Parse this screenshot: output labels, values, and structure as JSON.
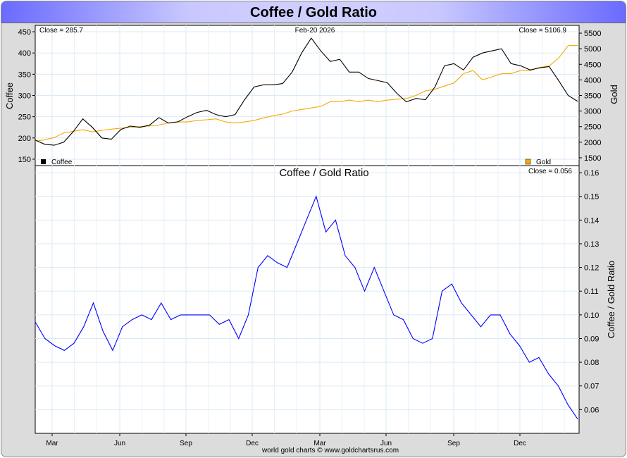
{
  "title": "Coffee / Gold Ratio",
  "footer": "world gold charts © www.goldchartsrus.com",
  "chart_data": [
    {
      "type": "line",
      "date_label": "Feb-20  2026",
      "x_ticks": [
        "Mar",
        "Jun",
        "Sep",
        "Dec",
        "Mar",
        "Jun",
        "Sep",
        "Dec"
      ],
      "left_axis": {
        "label": "Coffee",
        "ylim": [
          135,
          465
        ],
        "ticks": [
          150,
          200,
          250,
          300,
          350,
          400,
          450
        ]
      },
      "right_axis": {
        "label": "Gold",
        "ylim": [
          1250,
          5750
        ],
        "ticks": [
          1500,
          2000,
          2500,
          3000,
          3500,
          4000,
          4500,
          5000,
          5500
        ]
      },
      "series": [
        {
          "name": "Coffee",
          "axis": "left",
          "color": "#000000",
          "close_label": "Close = 285.7",
          "values": [
            195,
            185,
            183,
            190,
            215,
            245,
            225,
            200,
            197,
            220,
            228,
            225,
            230,
            248,
            235,
            238,
            250,
            260,
            265,
            255,
            250,
            255,
            290,
            320,
            325,
            325,
            328,
            355,
            400,
            435,
            405,
            380,
            385,
            355,
            355,
            340,
            335,
            330,
            305,
            285,
            293,
            290,
            320,
            370,
            375,
            360,
            390,
            400,
            405,
            410,
            375,
            370,
            360,
            365,
            368,
            335,
            300,
            286
          ]
        },
        {
          "name": "Gold",
          "axis": "right",
          "color": "#f5a800",
          "close_label": "Close = 5106.9",
          "values": [
            2030,
            2080,
            2150,
            2300,
            2350,
            2400,
            2330,
            2380,
            2420,
            2450,
            2480,
            2500,
            2520,
            2550,
            2620,
            2650,
            2650,
            2700,
            2720,
            2750,
            2650,
            2620,
            2650,
            2700,
            2780,
            2850,
            2900,
            3000,
            3050,
            3100,
            3150,
            3300,
            3300,
            3350,
            3300,
            3350,
            3300,
            3350,
            3380,
            3400,
            3500,
            3650,
            3700,
            3800,
            3900,
            4200,
            4300,
            4000,
            4100,
            4200,
            4200,
            4300,
            4300,
            4400,
            4450,
            4700,
            5100,
            5106.9
          ]
        }
      ]
    },
    {
      "type": "line",
      "title": "Coffee  /  Gold Ratio",
      "x_ticks": [
        "Mar",
        "Jun",
        "Sep",
        "Dec",
        "Mar",
        "Jun",
        "Sep",
        "Dec"
      ],
      "right_axis": {
        "label": "Coffee / Gold Ratio",
        "ylim": [
          0.05,
          0.163
        ],
        "ticks": [
          0.06,
          0.07,
          0.08,
          0.09,
          0.1,
          0.11,
          0.12,
          0.13,
          0.14,
          0.15,
          0.16
        ]
      },
      "series": [
        {
          "name": "Coffee / Gold Ratio",
          "color": "#0000ff",
          "close_label": "Close = 0.056",
          "values": [
            0.097,
            0.09,
            0.087,
            0.085,
            0.088,
            0.095,
            0.105,
            0.093,
            0.085,
            0.095,
            0.098,
            0.1,
            0.098,
            0.105,
            0.098,
            0.1,
            0.1,
            0.1,
            0.1,
            0.096,
            0.098,
            0.09,
            0.1,
            0.12,
            0.125,
            0.122,
            0.12,
            0.13,
            0.14,
            0.15,
            0.135,
            0.14,
            0.125,
            0.12,
            0.11,
            0.12,
            0.11,
            0.1,
            0.098,
            0.09,
            0.088,
            0.09,
            0.11,
            0.113,
            0.105,
            0.1,
            0.095,
            0.1,
            0.1,
            0.092,
            0.087,
            0.08,
            0.082,
            0.075,
            0.07,
            0.062,
            0.056
          ]
        }
      ]
    }
  ]
}
